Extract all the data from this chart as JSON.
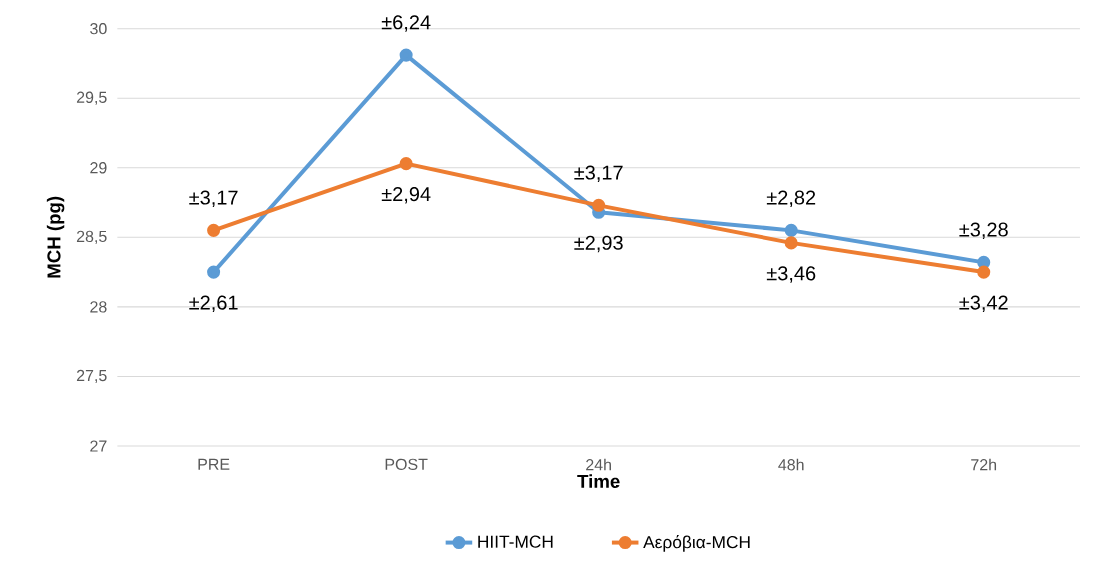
{
  "chart_data": {
    "type": "line",
    "xlabel": "Time",
    "ylabel": "MCH (pg)",
    "categories": [
      "PRE",
      "POST",
      "24h",
      "48h",
      "72h"
    ],
    "series": [
      {
        "name": "HIIT-MCH",
        "color": "#5b9bd5",
        "values": [
          28.25,
          29.81,
          28.68,
          28.55,
          28.32
        ]
      },
      {
        "name": "Αερόβια-MCH",
        "color": "#ed7d31",
        "values": [
          28.55,
          29.03,
          28.73,
          28.46,
          28.25
        ]
      }
    ],
    "ylim": [
      27,
      30
    ],
    "yticks": [
      27,
      {
        "value": 27.5,
        "label": "27,5"
      },
      28,
      {
        "value": 28.5,
        "label": "28,5"
      },
      29,
      {
        "value": 29.5,
        "label": "29,5"
      },
      30
    ],
    "grid": "y",
    "legend": "bottom",
    "marker": "circle",
    "line_style": "solid",
    "annotations": [
      {
        "text": "±2,61",
        "x": "PRE",
        "y": 28.25
      },
      {
        "text": "±3,17",
        "x": "PRE",
        "y": 28.55
      },
      {
        "text": "±6,24",
        "x": "POST",
        "y": 29.81
      },
      {
        "text": "±2,94",
        "x": "POST",
        "y": 29.03
      },
      {
        "text": "±2,93",
        "x": "24h",
        "y": 28.68
      },
      {
        "text": "±3,17",
        "x": "24h",
        "y": 28.73
      },
      {
        "text": "±2,82",
        "x": "48h",
        "y": 28.55
      },
      {
        "text": "±3,46",
        "x": "48h",
        "y": 28.46
      },
      {
        "text": "±3,28",
        "x": "72h",
        "y": 28.32
      },
      {
        "text": "±3,42",
        "x": "72h",
        "y": 28.25
      }
    ]
  }
}
